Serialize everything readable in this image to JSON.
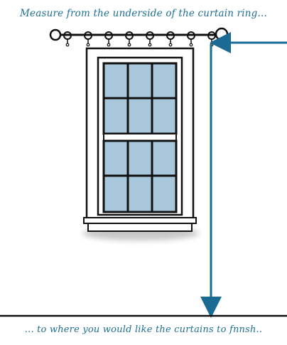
{
  "diagram": {
    "instruction_top": "Measure from the underside of the curtain ring...",
    "instruction_bottom": "... to where you would like the curtains to fnnsh..",
    "colors": {
      "text": "#1d6f92",
      "arrow": "#1a6b94",
      "glass": "#a9c8dc",
      "outline": "#111111",
      "shadow": "#9a9a9a"
    },
    "curtain_rings_count": 8
  }
}
